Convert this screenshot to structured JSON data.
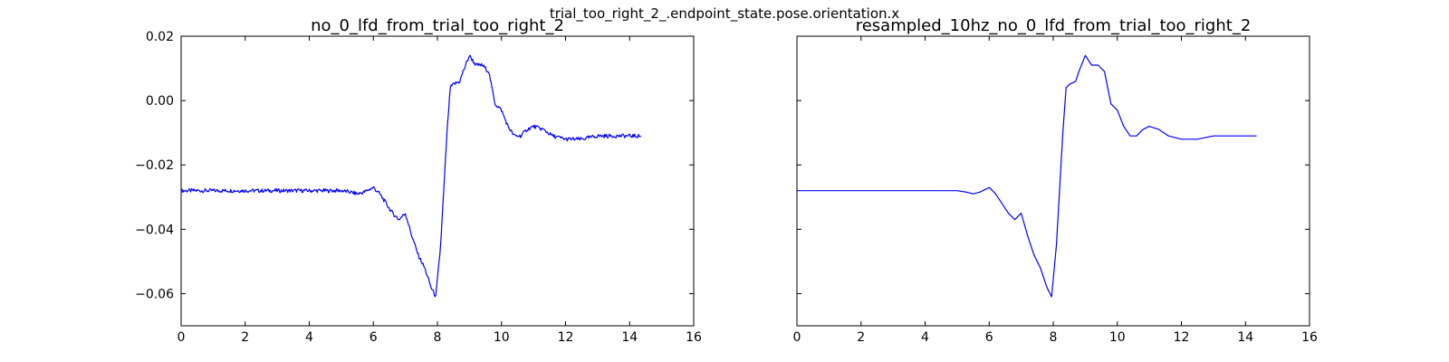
{
  "suptitle": "trial_too_right_2_.endpoint_state.pose.orientation.x",
  "chart_data": [
    {
      "type": "line",
      "title": "no_0_lfd_from_trial_too_right_2",
      "xlabel": "",
      "ylabel": "",
      "xlim": [
        0,
        16
      ],
      "ylim": [
        -0.07,
        0.02
      ],
      "xticks": [
        "0",
        "2",
        "4",
        "6",
        "8",
        "10",
        "12",
        "14",
        "16"
      ],
      "yticks": [
        "0.02",
        "0.00",
        "−0.02",
        "−0.04",
        "−0.06"
      ],
      "grid": false,
      "color": "#0000ff",
      "series": [
        {
          "x": [
            0,
            0.5,
            1,
            1.5,
            2,
            2.5,
            3,
            3.5,
            4,
            4.5,
            5,
            5.3,
            5.5,
            5.7,
            5.9,
            6.0,
            6.2,
            6.4,
            6.6,
            6.8,
            7.0,
            7.2,
            7.4,
            7.6,
            7.8,
            7.95,
            8.1,
            8.3,
            8.4,
            8.5,
            8.7,
            8.8,
            9.0,
            9.2,
            9.4,
            9.6,
            9.8,
            10.0,
            10.2,
            10.4,
            10.6,
            10.8,
            11.0,
            11.3,
            11.6,
            12.0,
            12.5,
            13.0,
            13.5,
            14.0,
            14.35
          ],
          "y": [
            -0.028,
            -0.028,
            -0.028,
            -0.028,
            -0.028,
            -0.028,
            -0.028,
            -0.028,
            -0.028,
            -0.028,
            -0.028,
            -0.0285,
            -0.029,
            -0.0285,
            -0.0275,
            -0.027,
            -0.029,
            -0.032,
            -0.035,
            -0.037,
            -0.035,
            -0.042,
            -0.048,
            -0.052,
            -0.058,
            -0.061,
            -0.045,
            -0.01,
            0.004,
            0.005,
            0.006,
            0.009,
            0.014,
            0.011,
            0.011,
            0.009,
            -0.001,
            -0.003,
            -0.008,
            -0.011,
            -0.011,
            -0.009,
            -0.008,
            -0.009,
            -0.011,
            -0.012,
            -0.012,
            -0.011,
            -0.011,
            -0.011,
            -0.011
          ]
        }
      ]
    },
    {
      "type": "line",
      "title": "resampled_10hz_no_0_lfd_from_trial_too_right_2",
      "xlabel": "",
      "ylabel": "",
      "xlim": [
        0,
        16
      ],
      "ylim": [
        -0.07,
        0.02
      ],
      "xticks": [
        "0",
        "2",
        "4",
        "6",
        "8",
        "10",
        "12",
        "14",
        "16"
      ],
      "yticks": [],
      "grid": false,
      "color": "#0000ff",
      "series": [
        {
          "x": [
            0,
            0.5,
            1,
            1.5,
            2,
            2.5,
            3,
            3.5,
            4,
            4.5,
            5,
            5.3,
            5.5,
            5.7,
            5.9,
            6.0,
            6.2,
            6.4,
            6.6,
            6.8,
            7.0,
            7.2,
            7.4,
            7.6,
            7.8,
            7.95,
            8.1,
            8.3,
            8.4,
            8.5,
            8.7,
            8.8,
            9.0,
            9.2,
            9.4,
            9.6,
            9.8,
            10.0,
            10.2,
            10.4,
            10.6,
            10.8,
            11.0,
            11.3,
            11.6,
            12.0,
            12.5,
            13.0,
            13.5,
            14.0,
            14.35
          ],
          "y": [
            -0.028,
            -0.028,
            -0.028,
            -0.028,
            -0.028,
            -0.028,
            -0.028,
            -0.028,
            -0.028,
            -0.028,
            -0.028,
            -0.0285,
            -0.029,
            -0.0285,
            -0.0275,
            -0.027,
            -0.029,
            -0.032,
            -0.035,
            -0.037,
            -0.035,
            -0.042,
            -0.048,
            -0.052,
            -0.058,
            -0.061,
            -0.045,
            -0.01,
            0.004,
            0.005,
            0.006,
            0.009,
            0.014,
            0.011,
            0.011,
            0.009,
            -0.001,
            -0.003,
            -0.008,
            -0.011,
            -0.011,
            -0.009,
            -0.008,
            -0.009,
            -0.011,
            -0.012,
            -0.012,
            -0.011,
            -0.011,
            -0.011,
            -0.011
          ]
        }
      ]
    }
  ]
}
